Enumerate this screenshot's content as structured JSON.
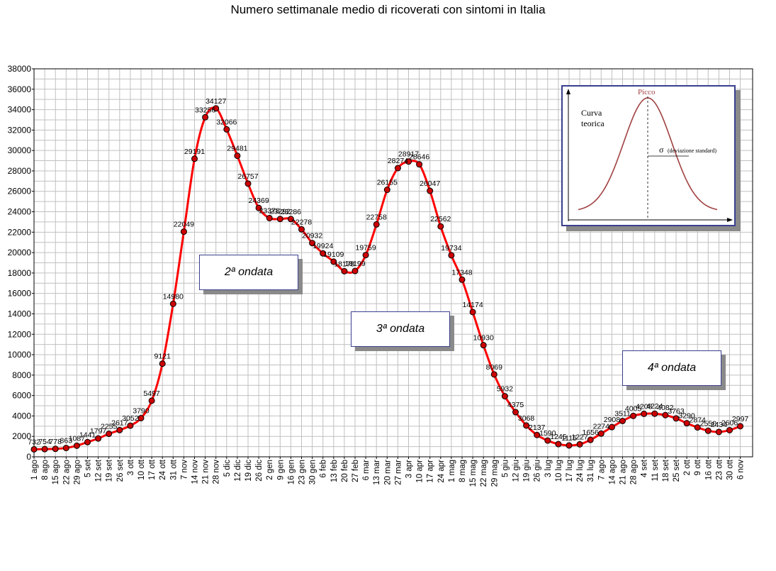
{
  "chart_data": {
    "type": "line",
    "title": "Numero settimanale medio di ricoverati con sintomi in Italia",
    "ylim": [
      0,
      38000
    ],
    "y_ticks": [
      0,
      2000,
      4000,
      6000,
      8000,
      10000,
      12000,
      14000,
      16000,
      18000,
      20000,
      22000,
      24000,
      26000,
      28000,
      30000,
      32000,
      34000,
      36000,
      38000
    ],
    "grid": true,
    "line_color": "#ff0000",
    "marker_color": "#cc0000",
    "categories": [
      "1 ago",
      "8 ago",
      "15 ago",
      "22 ago",
      "29 ago",
      "5 set",
      "12 set",
      "19 set",
      "26 set",
      "3 ott",
      "10 ott",
      "17 ott",
      "24 ott",
      "31 ott",
      "7 nov",
      "14 nov",
      "21 nov",
      "28 nov",
      "5 dic",
      "12 dic",
      "19 dic",
      "26 dic",
      "2 gen",
      "9 gen",
      "16 gen",
      "23 gen",
      "30 gen",
      "6 feb",
      "13 feb",
      "20 feb",
      "27 feb",
      "6 mar",
      "13 mar",
      "20 mar",
      "27 mar",
      "3 apr",
      "10 apr",
      "17 apr",
      "24 apr",
      "1 mag",
      "8 mag",
      "15 mag",
      "22 mag",
      "29 mag",
      "5 giu",
      "12 giu",
      "19 giu",
      "26 giu",
      "3 lug",
      "10 lug",
      "17 lug",
      "24 lug",
      "31 lug",
      "7 ago",
      "14 ago",
      "21 ago",
      "28 ago",
      "4 set",
      "11 set",
      "18 set",
      "25 set",
      "2 ott",
      "9 ott",
      "16 ott",
      "23 ott",
      "30 ott",
      "6 nov"
    ],
    "values": [
      732,
      754,
      778,
      863,
      1087,
      1441,
      1797,
      2255,
      2617,
      3052,
      3790,
      5497,
      9121,
      14980,
      22049,
      29191,
      33256,
      34127,
      32066,
      29481,
      26757,
      24369,
      23378,
      23292,
      23286,
      22278,
      20932,
      19924,
      19109,
      18178,
      18199,
      19759,
      22758,
      26155,
      28274,
      28917,
      28646,
      26047,
      22562,
      19734,
      17348,
      14174,
      10930,
      8069,
      5932,
      4375,
      3068,
      2137,
      1590,
      1245,
      1115,
      1227,
      1656,
      2274,
      2908,
      3511,
      4005,
      4208,
      4224,
      4082,
      3763,
      3290,
      2874,
      2550,
      2434,
      2606,
      2997
    ]
  },
  "annotations": [
    {
      "text": "2ª ondata"
    },
    {
      "text": "3ª ondata"
    },
    {
      "text": "4ª ondata"
    }
  ],
  "inset": {
    "peak_label": "Picco",
    "curve_label_1": "Curva",
    "curve_label_2": "teorica",
    "sigma_symbol": "σ",
    "sigma_label": "(deviazione standard)"
  }
}
